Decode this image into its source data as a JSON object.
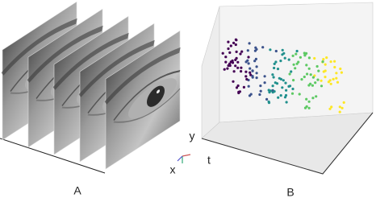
{
  "panel_a": {
    "label": "A"
  },
  "panel_b": {
    "label": "B",
    "axes": {
      "y": "y",
      "x": "x",
      "t": "t"
    }
  }
}
